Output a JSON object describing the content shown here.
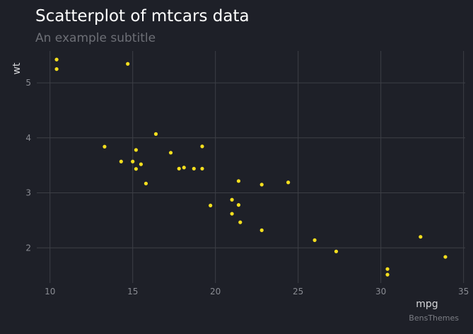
{
  "chart_data": {
    "type": "scatter",
    "title": "Scatterplot of mtcars data",
    "subtitle": "An example subtitle",
    "caption": "BensThemes",
    "xlabel": "mpg",
    "ylabel": "wt",
    "xlim": [
      9.2,
      35.1
    ],
    "ylim": [
      1.36,
      5.58
    ],
    "x_ticks": [
      10,
      15,
      20,
      25,
      30,
      35
    ],
    "y_ticks": [
      2,
      3,
      4,
      5
    ],
    "grid": true,
    "point_color": "#f5df1e",
    "background": "#1e2028",
    "points": [
      {
        "x": 21.0,
        "y": 2.62
      },
      {
        "x": 21.0,
        "y": 2.875
      },
      {
        "x": 22.8,
        "y": 2.32
      },
      {
        "x": 21.4,
        "y": 3.215
      },
      {
        "x": 18.7,
        "y": 3.44
      },
      {
        "x": 18.1,
        "y": 3.46
      },
      {
        "x": 14.3,
        "y": 3.57
      },
      {
        "x": 24.4,
        "y": 3.19
      },
      {
        "x": 22.8,
        "y": 3.15
      },
      {
        "x": 19.2,
        "y": 3.44
      },
      {
        "x": 17.8,
        "y": 3.44
      },
      {
        "x": 16.4,
        "y": 4.07
      },
      {
        "x": 17.3,
        "y": 3.73
      },
      {
        "x": 15.2,
        "y": 3.78
      },
      {
        "x": 10.4,
        "y": 5.25
      },
      {
        "x": 10.4,
        "y": 5.424
      },
      {
        "x": 14.7,
        "y": 5.345
      },
      {
        "x": 32.4,
        "y": 2.2
      },
      {
        "x": 30.4,
        "y": 1.615
      },
      {
        "x": 33.9,
        "y": 1.835
      },
      {
        "x": 21.5,
        "y": 2.465
      },
      {
        "x": 15.5,
        "y": 3.52
      },
      {
        "x": 15.2,
        "y": 3.435
      },
      {
        "x": 13.3,
        "y": 3.84
      },
      {
        "x": 19.2,
        "y": 3.845
      },
      {
        "x": 27.3,
        "y": 1.935
      },
      {
        "x": 26.0,
        "y": 2.14
      },
      {
        "x": 30.4,
        "y": 1.513
      },
      {
        "x": 15.8,
        "y": 3.17
      },
      {
        "x": 19.7,
        "y": 2.77
      },
      {
        "x": 15.0,
        "y": 3.57
      },
      {
        "x": 21.4,
        "y": 2.78
      }
    ]
  }
}
